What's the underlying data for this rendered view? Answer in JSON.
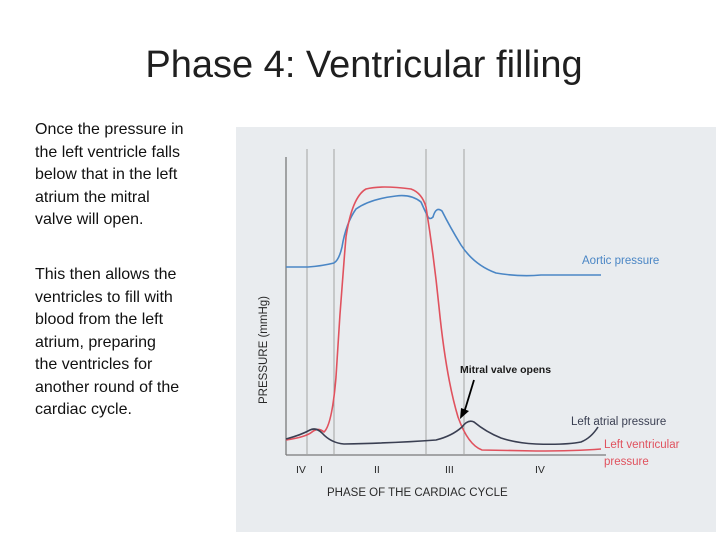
{
  "slide": {
    "title": "Phase 4: Ventricular filling",
    "paragraph1": [
      "Once the pressure in",
      "the left ventricle falls",
      "below that in the left",
      "atrium the mitral",
      "valve will open."
    ],
    "paragraph2": [
      "This then allows the",
      "ventricles to fill with",
      "blood from the left",
      "atrium, preparing",
      "the ventricles for",
      "another round of the",
      "cardiac cycle."
    ]
  },
  "diagram": {
    "y_axis_label": "PRESSURE (mmHg)",
    "x_axis_label": "PHASE OF THE CARDIAC CYCLE",
    "phase_labels": [
      "IV",
      "I",
      "II",
      "III",
      "IV"
    ],
    "curves": {
      "aortic": {
        "label": "Aortic pressure",
        "color": "#4a86c5"
      },
      "left_atrial": {
        "label": "Left atrial pressure",
        "color": "#3a3f52"
      },
      "left_ventricular": {
        "label_line1": "Left ventricular",
        "label_line2": "pressure",
        "color": "#e0525e"
      }
    },
    "annotation": {
      "text": "Mitral valve opens"
    }
  }
}
